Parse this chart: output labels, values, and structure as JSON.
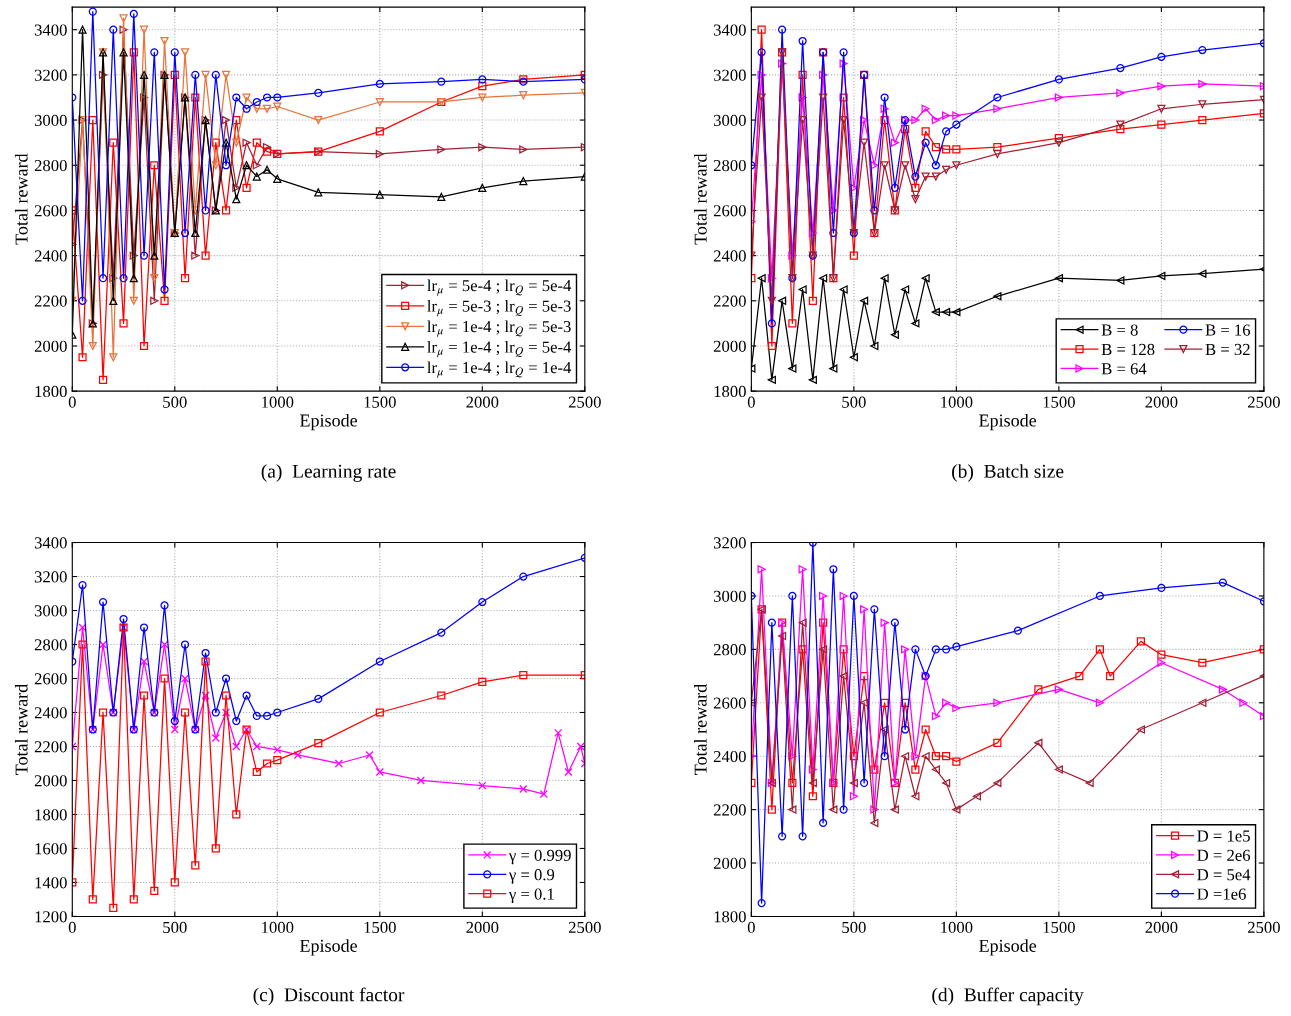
{
  "chart_data": [
    {
      "type": "line",
      "title": "(a)  Learning rate",
      "xlabel": "Episode",
      "ylabel": "Total reward",
      "xlim": [
        0,
        2500
      ],
      "xticks": [
        0,
        500,
        1000,
        1500,
        2000,
        2500
      ],
      "ylim": [
        1800,
        3500
      ],
      "yticks": [
        1800,
        2000,
        2200,
        2400,
        2600,
        2800,
        3000,
        3200,
        3400
      ],
      "grid": true,
      "legend": "bottom right",
      "line_style": "solid",
      "series": [
        {
          "name": "lr$_{μ}$ = 5e-4 ; lr$_{Q}$ = 5e-4",
          "color": "#a31f34",
          "marker": "triangle-right",
          "x": [
            0,
            50,
            100,
            150,
            200,
            250,
            300,
            350,
            400,
            450,
            500,
            550,
            600,
            650,
            700,
            750,
            800,
            850,
            900,
            950,
            1000,
            1200,
            1500,
            1800,
            2000,
            2200,
            2500
          ],
          "values": [
            2450,
            3000,
            2100,
            3200,
            2300,
            3400,
            2400,
            3100,
            2200,
            3200,
            2500,
            3100,
            2400,
            3000,
            2600,
            3000,
            2700,
            2900,
            2800,
            2880,
            2850,
            2860,
            2850,
            2870,
            2880,
            2870,
            2880
          ]
        },
        {
          "name": "lr$_{μ}$ = 5e-3 ; lr$_{Q}$ = 5e-3",
          "color": "#ff0000",
          "marker": "square",
          "x": [
            0,
            50,
            100,
            150,
            200,
            250,
            300,
            350,
            400,
            450,
            500,
            550,
            600,
            650,
            700,
            750,
            800,
            850,
            900,
            950,
            1000,
            1200,
            1500,
            1800,
            2000,
            2200,
            2500
          ],
          "values": [
            2600,
            1950,
            3000,
            1850,
            2900,
            2100,
            3300,
            2000,
            2800,
            2200,
            3200,
            2300,
            3100,
            2400,
            2900,
            2600,
            3000,
            2700,
            2900,
            2860,
            2850,
            2860,
            2950,
            3080,
            3150,
            3180,
            3200
          ]
        },
        {
          "name": "lr$_{μ}$ = 1e-4 ; lr$_{Q}$ = 5e-3",
          "color": "#e8743b",
          "marker": "triangle-down",
          "x": [
            0,
            50,
            100,
            150,
            200,
            250,
            300,
            350,
            400,
            450,
            500,
            550,
            600,
            650,
            700,
            750,
            800,
            850,
            900,
            950,
            1000,
            1200,
            1500,
            1800,
            2000,
            2200,
            2500
          ],
          "values": [
            2200,
            3000,
            2000,
            3300,
            1950,
            3450,
            2200,
            3400,
            2300,
            3350,
            2500,
            3300,
            2600,
            3200,
            2800,
            3200,
            2900,
            3100,
            3050,
            3050,
            3060,
            3000,
            3080,
            3080,
            3100,
            3110,
            3120
          ]
        },
        {
          "name": "lr$_{μ}$ = 1e-4 ; lr$_{Q}$ = 5e-4",
          "color": "#000000",
          "marker": "triangle",
          "x": [
            0,
            50,
            100,
            150,
            200,
            250,
            300,
            350,
            400,
            450,
            500,
            550,
            600,
            650,
            700,
            750,
            800,
            850,
            900,
            950,
            1000,
            1200,
            1500,
            1800,
            2000,
            2200,
            2500
          ],
          "values": [
            2050,
            3400,
            2100,
            3300,
            2200,
            3300,
            2300,
            3200,
            2400,
            3200,
            2500,
            3100,
            2500,
            3000,
            2600,
            2900,
            2650,
            2800,
            2750,
            2780,
            2740,
            2680,
            2670,
            2660,
            2700,
            2730,
            2750
          ]
        },
        {
          "name": "lr$_{μ}$ = 1e-4 ; lr$_{Q}$ = 1e-4",
          "color": "#0000ff",
          "marker": "circle",
          "x": [
            0,
            50,
            100,
            150,
            200,
            250,
            300,
            350,
            400,
            450,
            500,
            550,
            600,
            650,
            700,
            750,
            800,
            850,
            900,
            950,
            1000,
            1200,
            1500,
            1800,
            2000,
            2200,
            2500
          ],
          "values": [
            3100,
            2200,
            3480,
            2300,
            3400,
            2300,
            3470,
            2400,
            3300,
            2250,
            3300,
            2500,
            3200,
            2600,
            3200,
            2800,
            3100,
            3050,
            3080,
            3100,
            3100,
            3120,
            3160,
            3170,
            3180,
            3170,
            3180
          ]
        }
      ]
    },
    {
      "type": "line",
      "title": "(b)  Batch size",
      "xlabel": "Episode",
      "ylabel": "Total reward",
      "xlim": [
        0,
        2500
      ],
      "xticks": [
        0,
        500,
        1000,
        1500,
        2000,
        2500
      ],
      "ylim": [
        1800,
        3500
      ],
      "yticks": [
        1800,
        2000,
        2200,
        2400,
        2600,
        2800,
        3000,
        3200,
        3400
      ],
      "grid": true,
      "legend": "bottom right",
      "line_style": "solid",
      "series": [
        {
          "name": "B = 8",
          "color": "#000000",
          "marker": "triangle-left",
          "x": [
            0,
            50,
            100,
            150,
            200,
            250,
            300,
            350,
            400,
            450,
            500,
            550,
            600,
            650,
            700,
            750,
            800,
            850,
            900,
            950,
            1000,
            1200,
            1500,
            1800,
            2000,
            2200,
            2500
          ],
          "values": [
            1900,
            2300,
            1850,
            2200,
            1900,
            2250,
            1850,
            2300,
            1900,
            2250,
            1950,
            2200,
            2000,
            2300,
            2050,
            2250,
            2100,
            2300,
            2150,
            2150,
            2150,
            2220,
            2300,
            2290,
            2310,
            2320,
            2340
          ]
        },
        {
          "name": "B = 128",
          "color": "#ff0000",
          "marker": "square",
          "x": [
            0,
            50,
            100,
            150,
            200,
            250,
            300,
            350,
            400,
            450,
            500,
            550,
            600,
            650,
            700,
            750,
            800,
            850,
            900,
            950,
            1000,
            1200,
            1500,
            1800,
            2000,
            2200,
            2500
          ],
          "values": [
            2300,
            3400,
            2000,
            3300,
            2100,
            3200,
            2200,
            3300,
            2300,
            3100,
            2400,
            3200,
            2500,
            3000,
            2600,
            2960,
            2700,
            2950,
            2880,
            2870,
            2870,
            2880,
            2920,
            2960,
            2980,
            3000,
            3030
          ]
        },
        {
          "name": "B = 64",
          "color": "#ff00ff",
          "marker": "triangle-right",
          "x": [
            0,
            50,
            100,
            150,
            200,
            250,
            300,
            350,
            400,
            450,
            500,
            550,
            600,
            650,
            700,
            750,
            800,
            850,
            900,
            950,
            1000,
            1200,
            1500,
            1800,
            2000,
            2200,
            2500
          ],
          "values": [
            2550,
            3200,
            2300,
            3250,
            2400,
            3100,
            2500,
            3200,
            2600,
            3250,
            2700,
            3000,
            2800,
            3050,
            2900,
            3000,
            3000,
            3050,
            3000,
            3020,
            3020,
            3050,
            3100,
            3120,
            3150,
            3160,
            3150
          ]
        },
        {
          "name": "B = 16",
          "color": "#0000ff",
          "marker": "circle",
          "x": [
            0,
            50,
            100,
            150,
            200,
            250,
            300,
            350,
            400,
            450,
            500,
            550,
            600,
            650,
            700,
            750,
            800,
            850,
            900,
            950,
            1000,
            1200,
            1500,
            1800,
            2000,
            2200,
            2500
          ],
          "values": [
            2800,
            3300,
            2100,
            3400,
            2300,
            3350,
            2400,
            3300,
            2500,
            3300,
            2500,
            3200,
            2600,
            3100,
            2700,
            3000,
            2750,
            2900,
            2800,
            2950,
            2980,
            3100,
            3180,
            3230,
            3280,
            3310,
            3340
          ]
        },
        {
          "name": "B = 32",
          "color": "#a31f34",
          "marker": "triangle-down",
          "x": [
            0,
            50,
            100,
            150,
            200,
            250,
            300,
            350,
            400,
            450,
            500,
            550,
            600,
            650,
            700,
            750,
            800,
            850,
            900,
            950,
            1000,
            1200,
            1500,
            1800,
            2000,
            2200,
            2500
          ],
          "values": [
            2400,
            3100,
            2200,
            3300,
            2300,
            3000,
            2400,
            3100,
            2300,
            3000,
            2500,
            2900,
            2500,
            2800,
            2600,
            2800,
            2650,
            2750,
            2750,
            2780,
            2800,
            2850,
            2900,
            2980,
            3050,
            3070,
            3090
          ]
        }
      ]
    },
    {
      "type": "line",
      "title": "(c)  Discount factor",
      "xlabel": "Episode",
      "ylabel": "Total reward",
      "xlim": [
        0,
        2500
      ],
      "xticks": [
        0,
        500,
        1000,
        1500,
        2000,
        2500
      ],
      "ylim": [
        1200,
        3400
      ],
      "yticks": [
        1200,
        1400,
        1600,
        1800,
        2000,
        2200,
        2400,
        2600,
        2800,
        3000,
        3200,
        3400
      ],
      "grid": true,
      "legend": "bottom right",
      "line_style": "solid",
      "series": [
        {
          "name": "γ = 0.999",
          "color": "#ff00ff",
          "marker": "cross",
          "x": [
            0,
            50,
            100,
            150,
            200,
            250,
            300,
            350,
            400,
            450,
            500,
            550,
            600,
            650,
            700,
            750,
            800,
            850,
            900,
            1000,
            1100,
            1300,
            1450,
            1500,
            1700,
            2000,
            2200,
            2300,
            2370,
            2420,
            2480,
            2500
          ],
          "values": [
            2200,
            2900,
            2300,
            2800,
            2400,
            2900,
            2300,
            2700,
            2400,
            2800,
            2300,
            2600,
            2300,
            2500,
            2250,
            2400,
            2200,
            2300,
            2200,
            2180,
            2150,
            2100,
            2150,
            2050,
            2000,
            1970,
            1950,
            1920,
            2280,
            2050,
            2200,
            2100
          ]
        },
        {
          "name": "γ = 0.9",
          "color": "#0000ff",
          "marker": "circle",
          "x": [
            0,
            50,
            100,
            150,
            200,
            250,
            300,
            350,
            400,
            450,
            500,
            550,
            600,
            650,
            700,
            750,
            800,
            850,
            900,
            950,
            1000,
            1200,
            1500,
            1800,
            2000,
            2200,
            2500
          ],
          "values": [
            2700,
            3150,
            2300,
            3050,
            2400,
            2950,
            2300,
            2900,
            2400,
            3030,
            2350,
            2800,
            2300,
            2750,
            2400,
            2600,
            2350,
            2500,
            2380,
            2380,
            2400,
            2480,
            2700,
            2870,
            3050,
            3200,
            3310
          ]
        },
        {
          "name": "γ = 0.1",
          "color": "#ff0000",
          "marker": "square",
          "x": [
            0,
            50,
            100,
            150,
            200,
            250,
            300,
            350,
            400,
            450,
            500,
            550,
            600,
            650,
            700,
            750,
            800,
            850,
            900,
            950,
            1000,
            1200,
            1500,
            1800,
            2000,
            2200,
            2500
          ],
          "values": [
            1400,
            2800,
            1300,
            2400,
            1250,
            2900,
            1300,
            2500,
            1350,
            2600,
            1400,
            2400,
            1500,
            2700,
            1600,
            2500,
            1800,
            2300,
            2050,
            2100,
            2120,
            2220,
            2400,
            2500,
            2580,
            2620,
            2620
          ]
        }
      ]
    },
    {
      "type": "line",
      "title": "(d)  Buffer capacity",
      "xlabel": "Episode",
      "ylabel": "Total reward",
      "xlim": [
        0,
        2500
      ],
      "xticks": [
        0,
        500,
        1000,
        1500,
        2000,
        2500
      ],
      "ylim": [
        1800,
        3200
      ],
      "yticks": [
        1800,
        2000,
        2200,
        2400,
        2600,
        2800,
        3000,
        3200
      ],
      "grid": true,
      "legend": "bottom right",
      "line_style": "solid",
      "series": [
        {
          "name": "D = 1e5",
          "color": "#ff0000",
          "marker": "square",
          "x": [
            0,
            50,
            100,
            150,
            200,
            250,
            300,
            350,
            400,
            450,
            500,
            550,
            600,
            650,
            700,
            750,
            800,
            850,
            900,
            950,
            1000,
            1200,
            1400,
            1600,
            1700,
            1750,
            1900,
            2000,
            2200,
            2500
          ],
          "values": [
            2300,
            2950,
            2200,
            2900,
            2300,
            2800,
            2250,
            2900,
            2300,
            2800,
            2400,
            2700,
            2350,
            2600,
            2300,
            2600,
            2350,
            2500,
            2400,
            2400,
            2380,
            2450,
            2650,
            2700,
            2800,
            2700,
            2830,
            2780,
            2750,
            2800
          ]
        },
        {
          "name": "D = 2e6",
          "color": "#ff00ff",
          "marker": "triangle-right",
          "x": [
            0,
            50,
            100,
            150,
            200,
            250,
            300,
            350,
            400,
            450,
            500,
            550,
            600,
            650,
            700,
            750,
            800,
            850,
            900,
            950,
            1000,
            1200,
            1500,
            1700,
            2000,
            2300,
            2400,
            2500
          ],
          "values": [
            2400,
            3100,
            2300,
            2900,
            2400,
            3100,
            2350,
            3000,
            2300,
            3000,
            2250,
            2950,
            2200,
            2900,
            2300,
            2800,
            2400,
            2700,
            2550,
            2600,
            2580,
            2600,
            2650,
            2600,
            2750,
            2650,
            2600,
            2550
          ]
        },
        {
          "name": "D = 5e4",
          "color": "#a31f34",
          "marker": "triangle-left",
          "x": [
            0,
            50,
            100,
            150,
            200,
            250,
            300,
            350,
            400,
            450,
            500,
            550,
            600,
            650,
            700,
            750,
            800,
            850,
            900,
            950,
            1000,
            1100,
            1200,
            1400,
            1500,
            1650,
            1900,
            2200,
            2500
          ],
          "values": [
            2600,
            2950,
            2300,
            2850,
            2200,
            2900,
            2300,
            2800,
            2200,
            2700,
            2300,
            2600,
            2150,
            2500,
            2200,
            2400,
            2250,
            2400,
            2350,
            2300,
            2200,
            2250,
            2300,
            2450,
            2350,
            2300,
            2500,
            2600,
            2700
          ]
        },
        {
          "name": "D =1e6",
          "color": "#0000ff",
          "marker": "circle",
          "x": [
            0,
            50,
            100,
            150,
            200,
            250,
            300,
            350,
            400,
            450,
            500,
            550,
            600,
            650,
            700,
            750,
            800,
            850,
            900,
            950,
            1000,
            1300,
            1700,
            2000,
            2300,
            2500
          ],
          "values": [
            3000,
            1850,
            2900,
            2100,
            3000,
            2100,
            3200,
            2150,
            3100,
            2200,
            3000,
            2300,
            2950,
            2400,
            2900,
            2500,
            2800,
            2700,
            2800,
            2800,
            2810,
            2870,
            3000,
            3030,
            3050,
            2980
          ]
        }
      ]
    }
  ]
}
